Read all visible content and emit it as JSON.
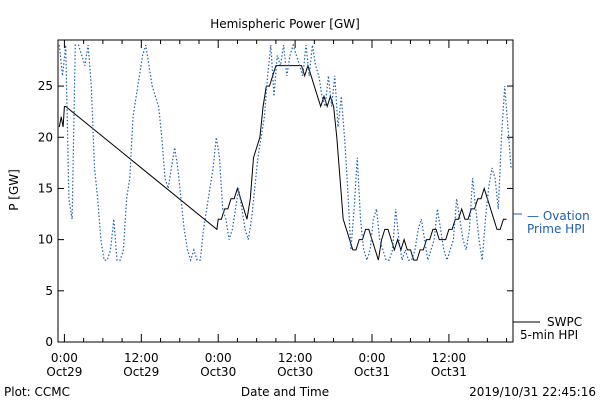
{
  "chart_data": {
    "type": "line",
    "title": "Hemispheric Power [GW]",
    "xlabel": "Date and Time",
    "ylabel": "P [GW]",
    "ylim": [
      0,
      29.5
    ],
    "xlim_hours": [
      -1,
      70
    ],
    "yticks": [
      0,
      5,
      10,
      15,
      20,
      25
    ],
    "xticks": [
      {
        "hour": 0,
        "time": "0:00",
        "date": "Oct29"
      },
      {
        "hour": 12,
        "time": "12:00",
        "date": "Oct29"
      },
      {
        "hour": 24,
        "time": "0:00",
        "date": "Oct30"
      },
      {
        "hour": 36,
        "time": "12:00",
        "date": "Oct30"
      },
      {
        "hour": 48,
        "time": "0:00",
        "date": "Oct31"
      },
      {
        "hour": 60,
        "time": "12:00",
        "date": "Oct31"
      }
    ],
    "series": [
      {
        "name": "SWPC 5-min HPI",
        "color": "#000000",
        "style": "solid",
        "x": [
          -0.8,
          -0.5,
          -0.2,
          0,
          0.2,
          23.8,
          24,
          24.5,
          25,
          25.5,
          26,
          26.5,
          27,
          27.5,
          28,
          28.5,
          29,
          29.5,
          30,
          30.5,
          31,
          31.5,
          32,
          32.5,
          33,
          33.5,
          34,
          34.5,
          35,
          35.5,
          36,
          36.5,
          37,
          37.5,
          38,
          38.5,
          39,
          39.5,
          40,
          40.5,
          41,
          41.5,
          42,
          42.5,
          43,
          43.5,
          44,
          44.5,
          45,
          45.5,
          46,
          46.5,
          47,
          47.5,
          48,
          48.5,
          49,
          49.5,
          50,
          50.5,
          51,
          51.5,
          52,
          52.5,
          53,
          53.5,
          54,
          54.5,
          55,
          55.5,
          56,
          56.5,
          57,
          57.5,
          58,
          58.5,
          59,
          59.5,
          60,
          60.5,
          61,
          61.5,
          62,
          62.5,
          63,
          63.5,
          64,
          64.5,
          65,
          65.5,
          66,
          66.5,
          67,
          67.5,
          68,
          68.5,
          69
        ],
        "y": [
          21,
          22,
          21,
          23,
          23,
          11,
          12,
          12,
          13,
          13,
          14,
          14,
          15,
          14,
          13,
          12,
          14,
          18,
          19,
          20,
          23,
          25,
          25,
          26,
          27,
          27,
          27,
          27,
          27,
          27,
          27,
          27,
          27,
          26,
          27,
          26,
          25,
          24,
          23,
          24,
          23,
          24,
          23,
          20,
          16,
          12,
          11,
          10,
          9,
          9,
          10,
          10,
          11,
          11,
          10,
          9,
          8,
          10,
          11,
          11,
          10,
          9,
          10,
          9,
          10,
          9,
          9,
          8,
          8,
          9,
          9,
          10,
          10,
          11,
          11,
          10,
          10,
          10,
          11,
          11,
          12,
          12,
          13,
          12,
          12,
          13,
          13,
          14,
          14,
          15,
          14,
          13,
          12,
          11,
          11,
          12,
          12
        ],
        "legend": [
          "SWPC",
          "5-min HPI"
        ]
      },
      {
        "name": "Ovation Prime HPI",
        "color": "#1f5fb4",
        "style": "dotted",
        "x": [
          -0.8,
          -0.3,
          0.2,
          0.7,
          1.2,
          1.7,
          2.2,
          2.7,
          3.2,
          3.7,
          4.2,
          4.7,
          5.2,
          5.7,
          6.2,
          6.7,
          7.2,
          7.7,
          8.2,
          8.7,
          9.2,
          9.7,
          10.2,
          10.7,
          11.2,
          11.7,
          12.2,
          12.7,
          13.2,
          13.7,
          14.2,
          14.7,
          15.2,
          15.7,
          16.2,
          16.7,
          17.2,
          17.7,
          18.2,
          18.7,
          19.2,
          19.7,
          20.2,
          20.7,
          21.2,
          21.7,
          22.2,
          22.7,
          23.2,
          23.7,
          24.2,
          24.7,
          25.2,
          25.7,
          26.2,
          26.7,
          27.2,
          27.7,
          28.2,
          28.7,
          29.2,
          29.7,
          30.2,
          30.7,
          31.2,
          31.7,
          32.2,
          32.7,
          33.2,
          33.7,
          34.2,
          34.7,
          35.2,
          35.7,
          36.2,
          36.7,
          37.2,
          37.7,
          38.2,
          38.7,
          39.2,
          39.7,
          40.2,
          40.7,
          41.2,
          41.7,
          42.2,
          42.7,
          43.2,
          43.7,
          44.2,
          44.7,
          45.2,
          45.7,
          46.2,
          46.7,
          47.2,
          47.7,
          48.2,
          48.7,
          49.2,
          49.7,
          50.2,
          50.7,
          51.2,
          51.7,
          52.2,
          52.7,
          53.2,
          53.7,
          54.2,
          54.7,
          55.2,
          55.7,
          56.2,
          56.7,
          57.2,
          57.7,
          58.2,
          58.7,
          59.2,
          59.7,
          60.2,
          60.7,
          61.2,
          61.7,
          62.2,
          62.7,
          63.2,
          63.7,
          64.2,
          64.7,
          65.2,
          65.7,
          66.2,
          66.7,
          67.2,
          67.7,
          68.2,
          68.7,
          69.2,
          69.7
        ],
        "y": [
          29,
          26,
          29,
          14,
          12,
          29,
          29,
          28,
          27,
          29,
          25,
          17,
          14,
          10,
          8,
          8,
          9,
          12,
          8,
          8,
          9,
          14,
          16,
          22,
          24,
          26,
          28,
          29,
          27,
          25,
          24,
          23,
          20,
          16,
          15,
          17,
          19,
          17,
          14,
          11,
          9,
          8,
          9,
          8,
          8,
          11,
          13,
          15,
          17,
          20,
          18,
          13,
          12,
          10,
          11,
          13,
          15,
          13,
          11,
          10,
          12,
          15,
          18,
          20,
          22,
          26,
          29,
          24,
          28,
          27,
          29,
          26,
          28,
          29,
          28,
          27,
          26,
          29,
          26,
          29,
          27,
          26,
          24,
          23,
          26,
          23,
          26,
          21,
          24,
          20,
          15,
          9,
          13,
          18,
          12,
          9,
          8,
          9,
          12,
          13,
          10,
          9,
          8,
          8,
          9,
          13,
          10,
          8,
          9,
          8,
          8,
          9,
          11,
          12,
          10,
          8,
          9,
          10,
          13,
          11,
          9,
          8,
          9,
          10,
          14,
          12,
          10,
          9,
          11,
          16,
          13,
          10,
          8,
          12,
          15,
          17,
          16,
          13,
          20,
          25,
          21,
          17
        ],
        "legend": [
          "— Ovation",
          "Prime HPI"
        ]
      }
    ]
  },
  "footer": {
    "left": "Plot: CCMC",
    "right": "2019/10/31 22:45:16"
  }
}
